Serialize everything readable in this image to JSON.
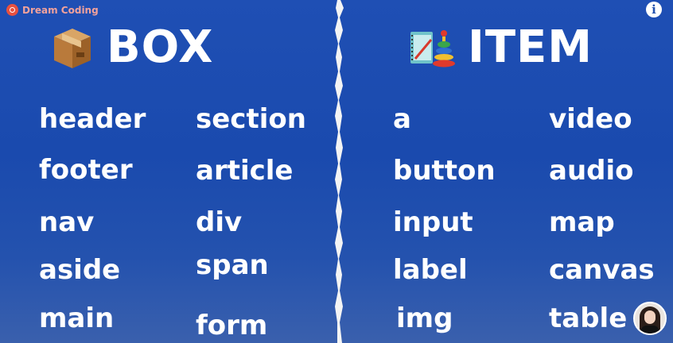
{
  "brand": {
    "name": "Dream Coding"
  },
  "info_glyph": "i",
  "box": {
    "title": "BOX",
    "icon": "cardboard-box-icon",
    "col1": [
      "header",
      "footer",
      "nav",
      "aside",
      "main"
    ],
    "col2": [
      "section",
      "article",
      "div",
      "span",
      "form"
    ]
  },
  "item": {
    "title": "ITEM",
    "icon": "notebook-and-toy-icon",
    "col1": [
      "a",
      "button",
      "input",
      "label",
      "img"
    ],
    "col2": [
      "video",
      "audio",
      "map",
      "canvas",
      "table"
    ]
  },
  "colors": {
    "background": "#1f4fb4",
    "text": "#ffffff",
    "brand": "#e8503f"
  }
}
